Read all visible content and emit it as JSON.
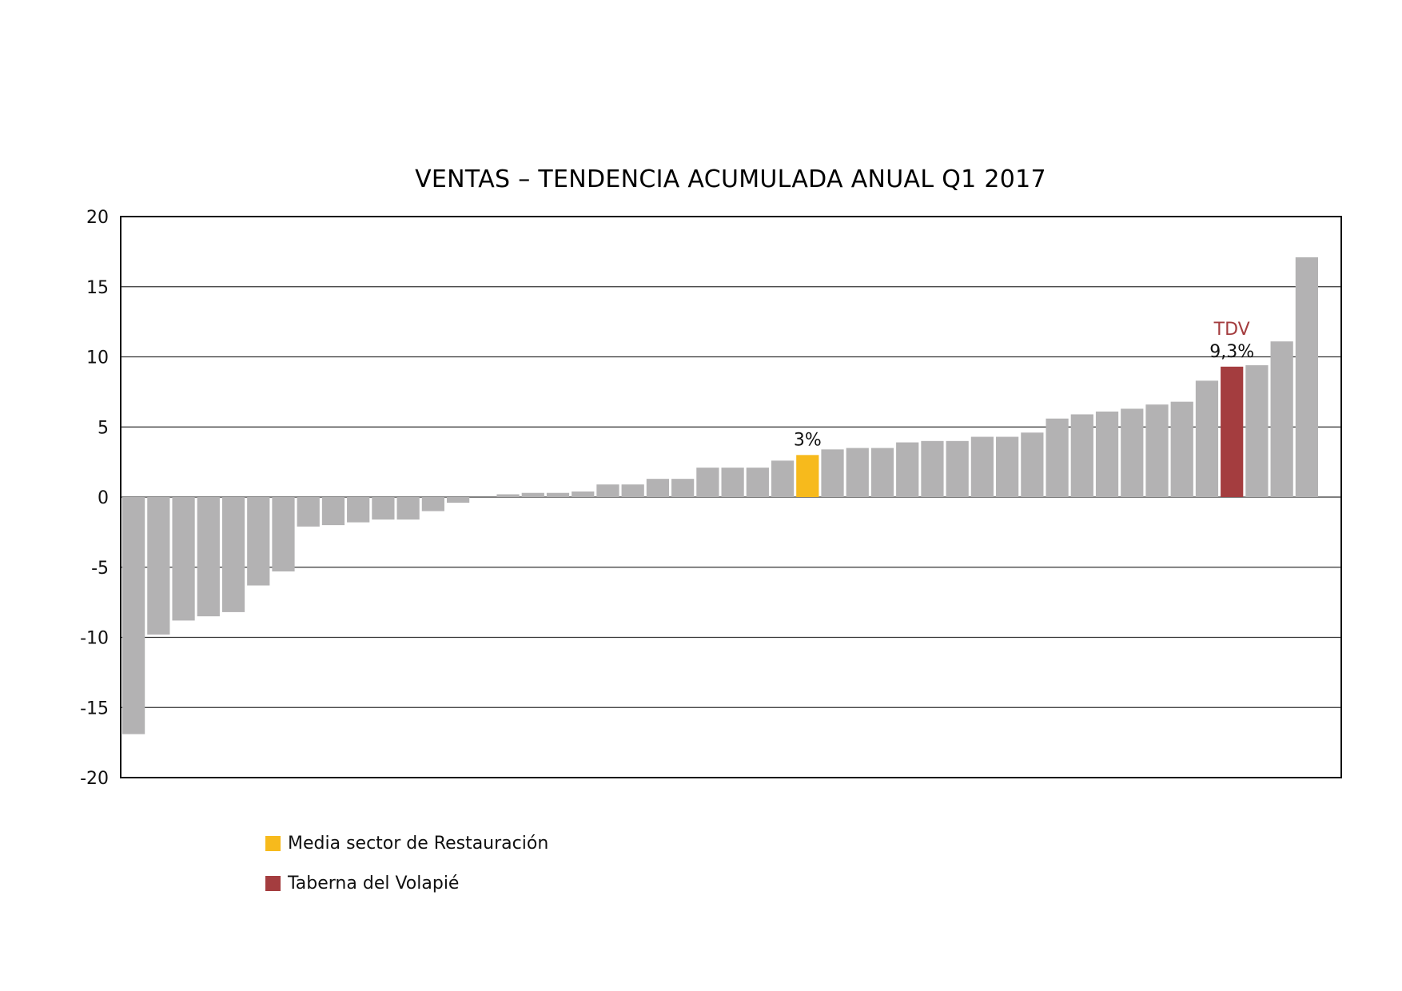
{
  "chart_data": {
    "type": "bar",
    "title": "VENTAS – TENDENCIA ACUMULADA ANUAL Q1 2017",
    "xlabel": "",
    "ylabel": "",
    "ylim": [
      -20,
      20
    ],
    "yticks": [
      20,
      15,
      10,
      5,
      0,
      -5,
      -10,
      -15,
      -20
    ],
    "ytick_labels": [
      "20",
      "15",
      "10",
      "5",
      "0",
      "-5",
      "-10",
      "-15",
      "-20"
    ],
    "grid": true,
    "legend_position": "bottom-left",
    "values": [
      -16.9,
      -9.8,
      -8.8,
      -8.5,
      -8.2,
      -6.3,
      -5.3,
      -2.1,
      -2.0,
      -1.8,
      -1.6,
      -1.6,
      -1.0,
      -0.4,
      0.0,
      0.2,
      0.3,
      0.3,
      0.4,
      0.9,
      0.9,
      1.3,
      1.3,
      2.1,
      2.1,
      2.1,
      2.6,
      3.0,
      3.4,
      3.5,
      3.5,
      3.9,
      4.0,
      4.0,
      4.3,
      4.3,
      4.6,
      5.6,
      5.9,
      6.1,
      6.3,
      6.6,
      6.8,
      8.3,
      9.3,
      9.4,
      11.1,
      17.1
    ],
    "highlights": [
      {
        "index": 27,
        "series": "Media sector de Restauración",
        "color": "#F7BA1C",
        "value_label": "3%"
      },
      {
        "index": 44,
        "series": "Taberna del Volapié",
        "color": "#A43D3F",
        "value_label": "9,3%",
        "tag": "TDV"
      }
    ],
    "default_color": "#B3B2B3",
    "legend": [
      {
        "label": "Media sector de Restauración",
        "color": "#F7BA1C"
      },
      {
        "label": "Taberna del Volapié",
        "color": "#A43D3F"
      }
    ]
  }
}
